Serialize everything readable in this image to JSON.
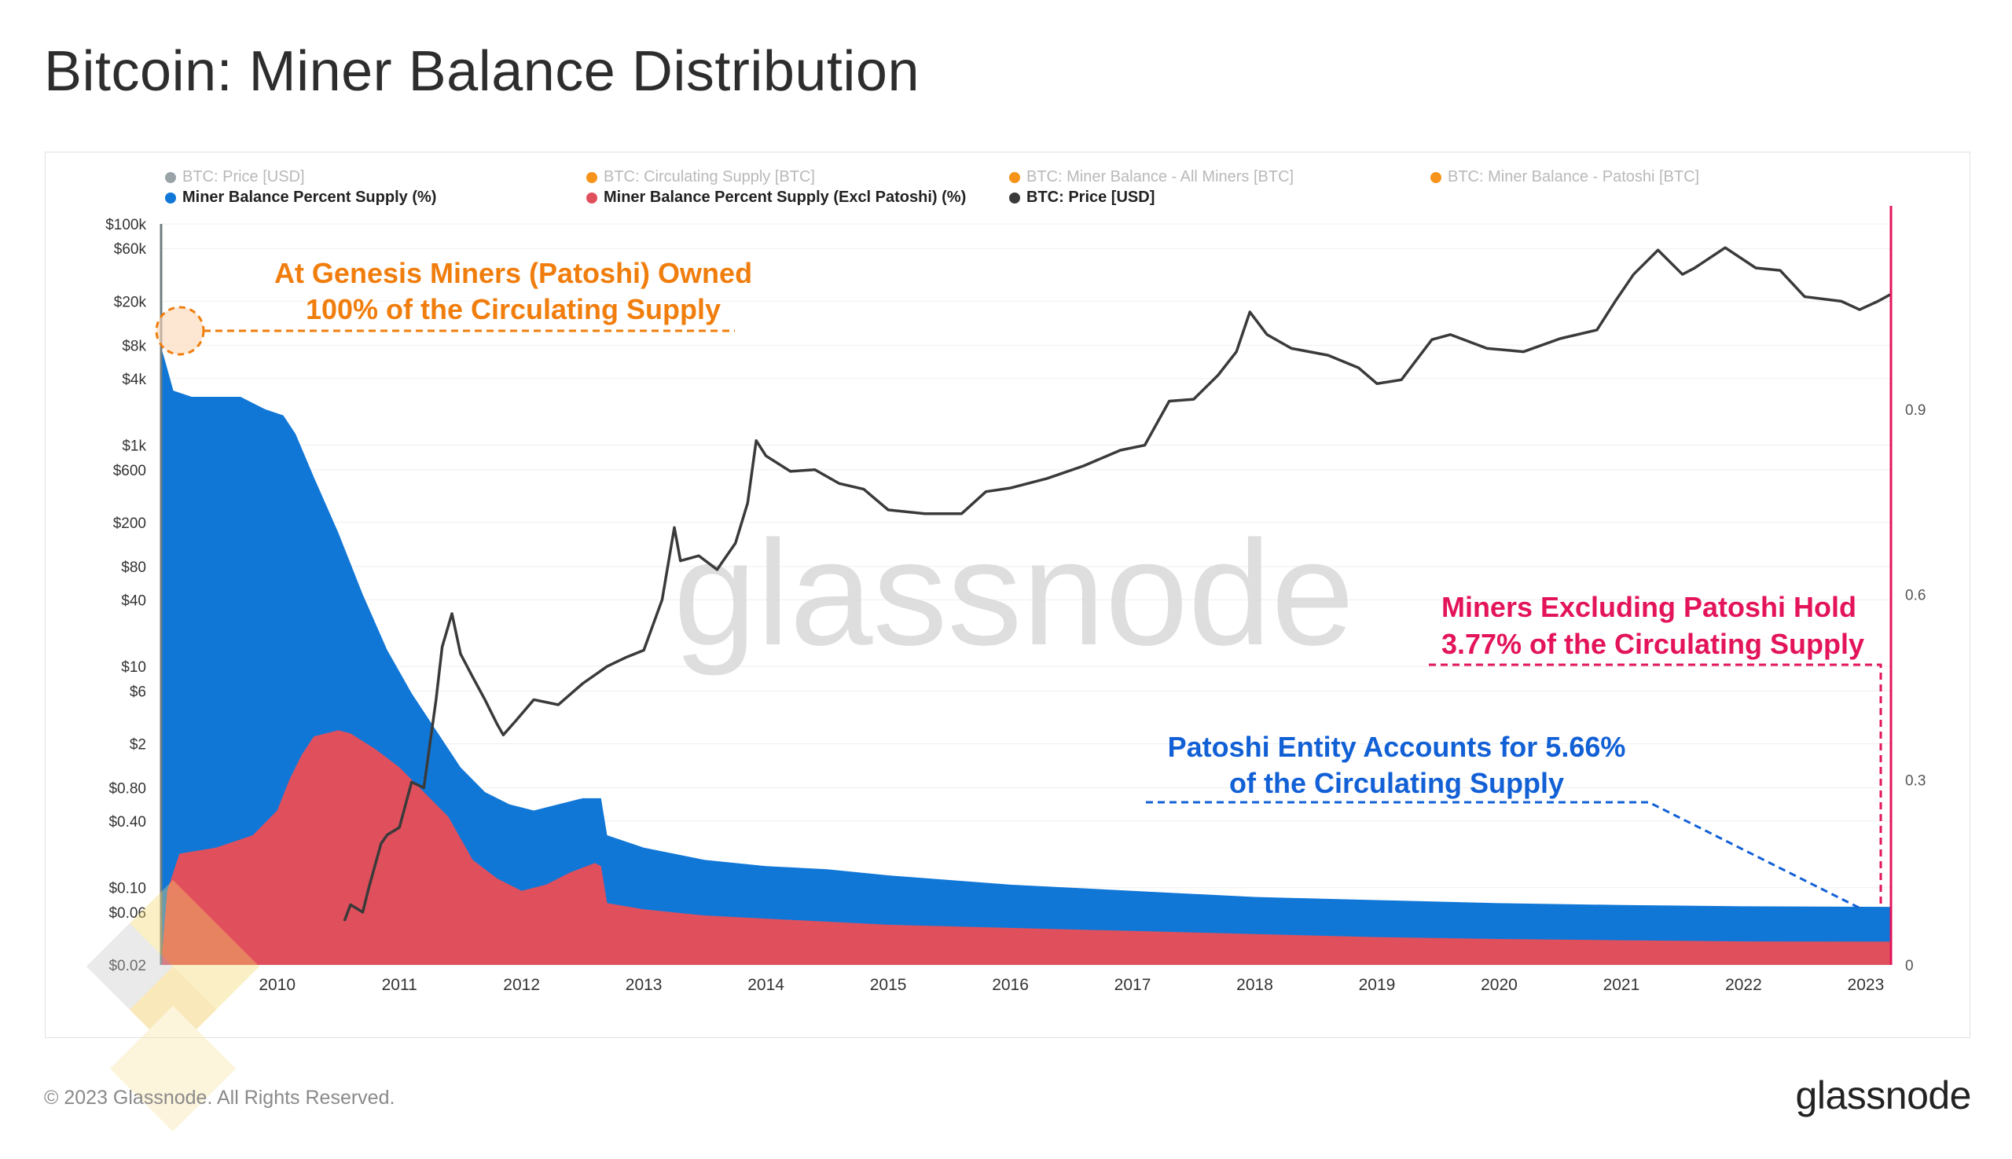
{
  "page": {
    "title": "Bitcoin: Miner Balance Distribution",
    "copyright": "© 2023 Glassnode. All Rights Reserved.",
    "brand": "glassnode",
    "watermark": "glassnode"
  },
  "legend": [
    {
      "label": "BTC: Price [USD]",
      "color": "#9aa3a8",
      "active": false
    },
    {
      "label": "BTC: Circulating Supply [BTC]",
      "color": "#f7931a",
      "active": false
    },
    {
      "label": "BTC: Miner Balance - All Miners [BTC]",
      "color": "#f7931a",
      "active": false
    },
    {
      "label": "BTC: Miner Balance - Patoshi [BTC]",
      "color": "#f7931a",
      "active": false
    },
    {
      "label": "Miner Balance Percent Supply (%)",
      "color": "#1177d7",
      "active": true
    },
    {
      "label": "Miner Balance Percent Supply (Excl Patoshi) (%)",
      "color": "#e0505c",
      "active": true
    },
    {
      "label": "BTC: Price [USD]",
      "color": "#3a3a3a",
      "active": true
    }
  ],
  "annotations": {
    "genesis": {
      "line1": "At Genesis Miners (Patoshi) Owned",
      "line2": "100% of the Circulating Supply",
      "color": "#f07d0c"
    },
    "excl_patoshi": {
      "line1": "Miners Excluding Patoshi Hold",
      "line2": "3.77% of the Circulating Supply",
      "color": "#e3145a"
    },
    "patoshi": {
      "line1": "Patoshi Entity Accounts for 5.66%",
      "line2": "of the Circulating Supply",
      "color": "#1260d6"
    }
  },
  "chart_data": {
    "type": "area",
    "colors": {
      "all_miners": "#1177d7",
      "excl_patoshi": "#e0505c",
      "price": "#3a3a3a",
      "right_axis": "#e3145a"
    },
    "x_ticks": [
      "2010",
      "2011",
      "2012",
      "2013",
      "2014",
      "2015",
      "2016",
      "2017",
      "2018",
      "2019",
      "2020",
      "2021",
      "2022",
      "2023"
    ],
    "xlim": [
      2009.05,
      2023.2
    ],
    "y_left": {
      "label": "BTC: Price [USD]",
      "scale": "log",
      "ticks": [
        "$100k",
        "$60k",
        "$20k",
        "$8k",
        "$4k",
        "$1k",
        "$600",
        "$200",
        "$80",
        "$40",
        "$10",
        "$6",
        "$2",
        "$0.80",
        "$0.40",
        "$0.10",
        "$0.06",
        "$0.02"
      ],
      "tick_values": [
        100000,
        60000,
        20000,
        8000,
        4000,
        1000,
        600,
        200,
        80,
        40,
        10,
        6,
        2,
        0.8,
        0.4,
        0.1,
        0.06,
        0.02
      ],
      "range": [
        0.02,
        100000
      ]
    },
    "y_right": {
      "label": "Miner Balance Percent Supply (%)",
      "ticks": [
        "0.9",
        "0.6",
        "0.3",
        "0"
      ],
      "tick_values": [
        0.9,
        0.6,
        0.3,
        0
      ],
      "range": [
        0,
        1.2
      ]
    },
    "series": [
      {
        "name": "Miner Balance Percent Supply (%)",
        "axis": "right",
        "x": [
          2009.05,
          2009.08,
          2009.15,
          2009.3,
          2009.5,
          2009.7,
          2009.9,
          2010.05,
          2010.15,
          2010.3,
          2010.5,
          2010.7,
          2010.9,
          2011.1,
          2011.3,
          2011.5,
          2011.7,
          2011.9,
          2012.1,
          2012.3,
          2012.5,
          2012.65,
          2012.7,
          2013.0,
          2013.5,
          2014.0,
          2014.5,
          2015.0,
          2016.0,
          2017.0,
          2018.0,
          2019.0,
          2020.0,
          2021.0,
          2022.0,
          2023.2
        ],
        "y": [
          1.0,
          0.98,
          0.93,
          0.92,
          0.92,
          0.92,
          0.9,
          0.89,
          0.86,
          0.79,
          0.7,
          0.6,
          0.51,
          0.44,
          0.38,
          0.32,
          0.28,
          0.26,
          0.25,
          0.26,
          0.27,
          0.27,
          0.21,
          0.19,
          0.17,
          0.16,
          0.155,
          0.145,
          0.13,
          0.12,
          0.11,
          0.105,
          0.1,
          0.097,
          0.095,
          0.094
        ]
      },
      {
        "name": "Miner Balance Percent Supply (Excl Patoshi) (%)",
        "axis": "right",
        "x": [
          2009.05,
          2009.1,
          2009.2,
          2009.5,
          2009.8,
          2010.0,
          2010.1,
          2010.2,
          2010.3,
          2010.5,
          2010.6,
          2010.8,
          2011.0,
          2011.2,
          2011.4,
          2011.6,
          2011.8,
          2012.0,
          2012.2,
          2012.4,
          2012.6,
          2012.65,
          2012.7,
          2013.0,
          2013.5,
          2014.0,
          2015.0,
          2016.0,
          2017.0,
          2018.0,
          2019.0,
          2020.0,
          2021.0,
          2022.0,
          2023.2
        ],
        "y": [
          0.0,
          0.12,
          0.18,
          0.19,
          0.21,
          0.25,
          0.3,
          0.34,
          0.37,
          0.38,
          0.375,
          0.35,
          0.32,
          0.28,
          0.24,
          0.17,
          0.14,
          0.12,
          0.13,
          0.15,
          0.165,
          0.16,
          0.1,
          0.09,
          0.08,
          0.075,
          0.065,
          0.06,
          0.055,
          0.05,
          0.045,
          0.042,
          0.04,
          0.038,
          0.0377
        ]
      },
      {
        "name": "BTC: Price [USD]",
        "axis": "left",
        "x": [
          2010.55,
          2010.6,
          2010.7,
          2010.75,
          2010.85,
          2010.9,
          2011.0,
          2011.1,
          2011.2,
          2011.3,
          2011.35,
          2011.43,
          2011.5,
          2011.6,
          2011.7,
          2011.8,
          2011.85,
          2011.95,
          2012.1,
          2012.3,
          2012.5,
          2012.7,
          2012.85,
          2013.0,
          2013.15,
          2013.25,
          2013.3,
          2013.45,
          2013.6,
          2013.75,
          2013.85,
          2013.92,
          2014.0,
          2014.2,
          2014.4,
          2014.6,
          2014.8,
          2015.0,
          2015.3,
          2015.6,
          2015.8,
          2016.0,
          2016.3,
          2016.6,
          2016.9,
          2017.1,
          2017.3,
          2017.5,
          2017.7,
          2017.85,
          2017.96,
          2018.1,
          2018.3,
          2018.6,
          2018.85,
          2019.0,
          2019.2,
          2019.45,
          2019.6,
          2019.9,
          2020.2,
          2020.5,
          2020.8,
          2020.95,
          2021.1,
          2021.3,
          2021.5,
          2021.6,
          2021.85,
          2022.1,
          2022.3,
          2022.5,
          2022.8,
          2022.95,
          2023.1,
          2023.2
        ],
        "y": [
          0.05,
          0.07,
          0.06,
          0.1,
          0.25,
          0.3,
          0.35,
          0.9,
          0.8,
          5,
          15,
          30,
          13,
          8,
          5,
          3,
          2.4,
          3.2,
          5,
          4.5,
          7,
          10,
          12,
          14,
          40,
          180,
          90,
          100,
          75,
          130,
          300,
          1100,
          800,
          580,
          600,
          450,
          400,
          260,
          240,
          240,
          380,
          410,
          500,
          650,
          900,
          1000,
          2500,
          2600,
          4300,
          7000,
          16000,
          10000,
          7500,
          6500,
          5000,
          3600,
          3900,
          9000,
          10000,
          7500,
          7000,
          9200,
          11000,
          20000,
          35000,
          58000,
          35000,
          40000,
          61000,
          40000,
          38000,
          22000,
          20000,
          16800,
          20000,
          23000
        ]
      }
    ]
  }
}
